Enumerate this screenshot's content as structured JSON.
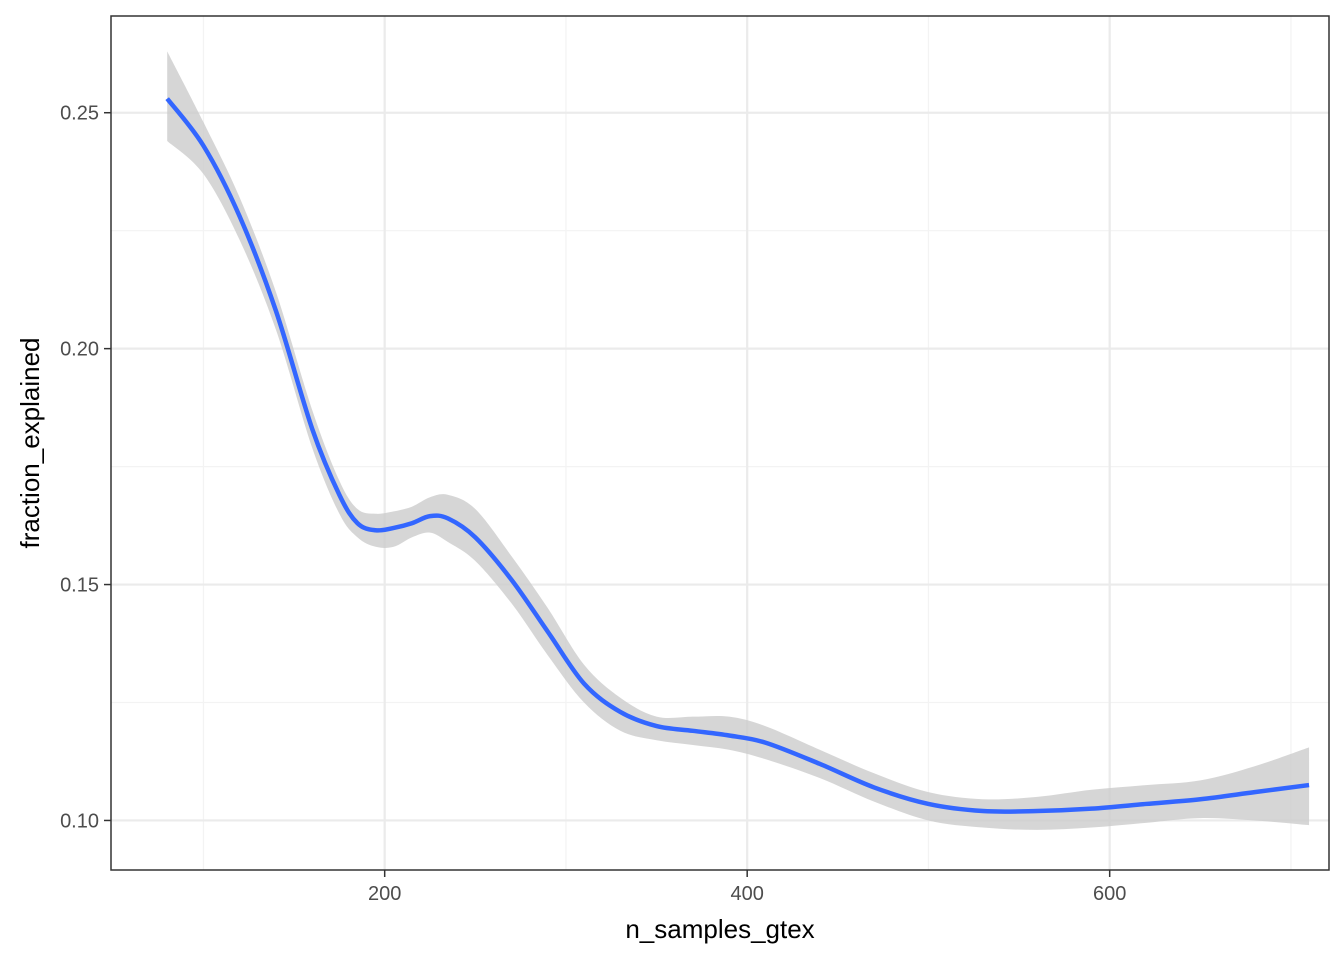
{
  "chart_data": {
    "type": "line",
    "title": "",
    "xlabel": "n_samples_gtex",
    "ylabel": "fraction_explained",
    "xlim": [
      49,
      721
    ],
    "ylim": [
      0.0895,
      0.2705
    ],
    "x_ticks": [
      200,
      400,
      600
    ],
    "x_tick_labels": [
      "200",
      "400",
      "600"
    ],
    "x_minor_ticks": [
      100,
      300,
      500,
      700
    ],
    "y_ticks": [
      0.1,
      0.15,
      0.2,
      0.25
    ],
    "y_tick_labels": [
      "0.10",
      "0.15",
      "0.20",
      "0.25"
    ],
    "y_minor_ticks": [
      0.125,
      0.175,
      0.225
    ],
    "grid": true,
    "legend": "none",
    "series": [
      {
        "style": "smooth-with-confidence-band",
        "points": [
          {
            "x": 80,
            "y": 0.253,
            "lo": 0.244,
            "hi": 0.263
          },
          {
            "x": 100,
            "y": 0.243,
            "lo": 0.237,
            "hi": 0.248
          },
          {
            "x": 120,
            "y": 0.228,
            "lo": 0.223,
            "hi": 0.232
          },
          {
            "x": 140,
            "y": 0.208,
            "lo": 0.204,
            "hi": 0.212
          },
          {
            "x": 160,
            "y": 0.183,
            "lo": 0.179,
            "hi": 0.187
          },
          {
            "x": 175,
            "y": 0.169,
            "lo": 0.165,
            "hi": 0.172
          },
          {
            "x": 185,
            "y": 0.163,
            "lo": 0.16,
            "hi": 0.166
          },
          {
            "x": 195,
            "y": 0.1615,
            "lo": 0.158,
            "hi": 0.165
          },
          {
            "x": 205,
            "y": 0.162,
            "lo": 0.158,
            "hi": 0.1655
          },
          {
            "x": 215,
            "y": 0.163,
            "lo": 0.16,
            "hi": 0.1665
          },
          {
            "x": 225,
            "y": 0.1645,
            "lo": 0.161,
            "hi": 0.1685
          },
          {
            "x": 235,
            "y": 0.164,
            "lo": 0.159,
            "hi": 0.169
          },
          {
            "x": 250,
            "y": 0.16,
            "lo": 0.155,
            "hi": 0.166
          },
          {
            "x": 270,
            "y": 0.151,
            "lo": 0.146,
            "hi": 0.156
          },
          {
            "x": 290,
            "y": 0.14,
            "lo": 0.135,
            "hi": 0.145
          },
          {
            "x": 310,
            "y": 0.129,
            "lo": 0.125,
            "hi": 0.133
          },
          {
            "x": 330,
            "y": 0.123,
            "lo": 0.119,
            "hi": 0.126
          },
          {
            "x": 350,
            "y": 0.12,
            "lo": 0.117,
            "hi": 0.122
          },
          {
            "x": 370,
            "y": 0.119,
            "lo": 0.116,
            "hi": 0.122
          },
          {
            "x": 390,
            "y": 0.118,
            "lo": 0.115,
            "hi": 0.122
          },
          {
            "x": 410,
            "y": 0.1165,
            "lo": 0.113,
            "hi": 0.12
          },
          {
            "x": 440,
            "y": 0.112,
            "lo": 0.109,
            "hi": 0.115
          },
          {
            "x": 470,
            "y": 0.107,
            "lo": 0.104,
            "hi": 0.11
          },
          {
            "x": 500,
            "y": 0.1035,
            "lo": 0.1,
            "hi": 0.106
          },
          {
            "x": 530,
            "y": 0.102,
            "lo": 0.0985,
            "hi": 0.1045
          },
          {
            "x": 560,
            "y": 0.102,
            "lo": 0.098,
            "hi": 0.105
          },
          {
            "x": 590,
            "y": 0.1025,
            "lo": 0.0985,
            "hi": 0.1065
          },
          {
            "x": 620,
            "y": 0.1035,
            "lo": 0.0995,
            "hi": 0.1075
          },
          {
            "x": 650,
            "y": 0.1045,
            "lo": 0.1005,
            "hi": 0.1085
          },
          {
            "x": 680,
            "y": 0.106,
            "lo": 0.1,
            "hi": 0.1115
          },
          {
            "x": 710,
            "y": 0.1075,
            "lo": 0.099,
            "hi": 0.1155
          }
        ]
      }
    ]
  },
  "colors": {
    "line": "#3366ff",
    "band": "#cccccc",
    "grid_major": "#ebebeb",
    "grid_minor": "#f3f3f3",
    "panel_border": "#333333",
    "tick_label": "#4d4d4d"
  }
}
